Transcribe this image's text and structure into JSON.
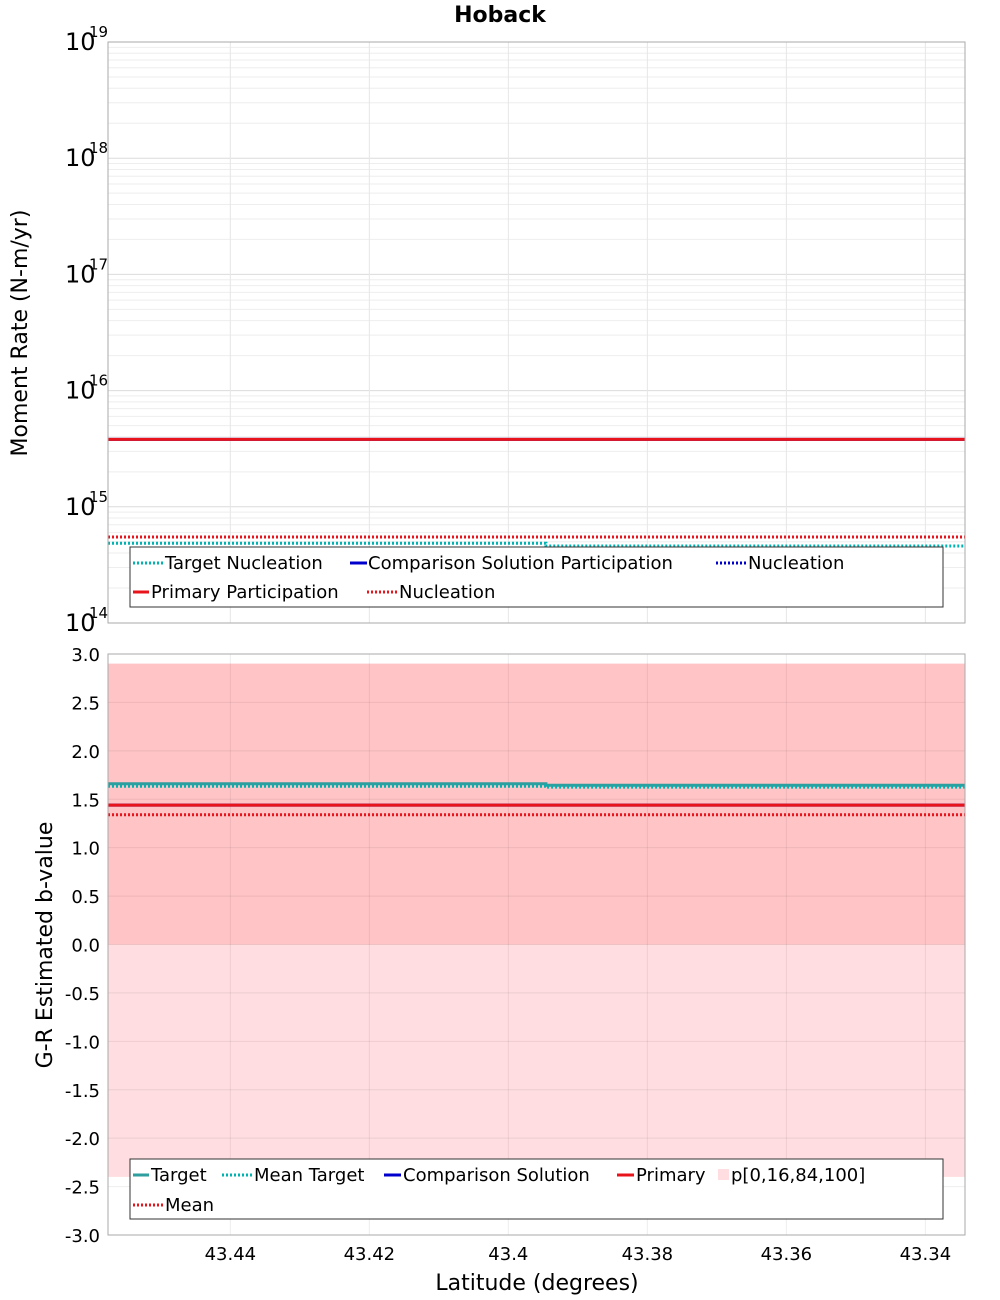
{
  "chart_data": [
    {
      "type": "line",
      "title": "Hoback",
      "xlabel": "",
      "ylabel": "Moment Rate (N-m/yr)",
      "y_scale": "log",
      "ylim": [
        100000000000000.0,
        1e+19
      ],
      "xlim": [
        43.4576,
        43.3343
      ],
      "x_reversed": true,
      "grid": true,
      "y_tick_labels": [
        {
          "base": "10",
          "exp": "14",
          "value": 100000000000000.0
        },
        {
          "base": "10",
          "exp": "15",
          "value": 1000000000000000.0
        },
        {
          "base": "10",
          "exp": "16",
          "value": 1e+16
        },
        {
          "base": "10",
          "exp": "17",
          "value": 1e+17
        },
        {
          "base": "10",
          "exp": "18",
          "value": 1e+18
        },
        {
          "base": "10",
          "exp": "19",
          "value": 1e+19
        }
      ],
      "series": [
        {
          "name": "Target Nucleation",
          "color": "#00b3b3",
          "style": "dotted",
          "x": [
            43.4576,
            43.3946,
            43.3946,
            43.3343
          ],
          "y": [
            485000000000000.0,
            485000000000000.0,
            460000000000000.0,
            460000000000000.0
          ]
        },
        {
          "name": "Comparison Solution Participation",
          "color": "#0000cc",
          "style": "solid",
          "x": [
            43.4576,
            43.3343
          ],
          "y": [
            3800000000000000.0,
            3800000000000000.0
          ]
        },
        {
          "name": "Nucleation",
          "color": "#0000cc",
          "style": "dotted",
          "x": [
            43.4576,
            43.3343
          ],
          "y": [
            550000000000000.0,
            550000000000000.0
          ]
        },
        {
          "name": "Primary Participation",
          "color": "#e8141b",
          "style": "solid",
          "x": [
            43.4576,
            43.3343
          ],
          "y": [
            3800000000000000.0,
            3800000000000000.0
          ]
        },
        {
          "name": "Nucleation",
          "color": "#e8141b",
          "style": "dotted",
          "x": [
            43.4576,
            43.3343
          ],
          "y": [
            550000000000000.0,
            550000000000000.0
          ]
        }
      ],
      "legend_position": "bottom-center"
    },
    {
      "type": "line",
      "title": "",
      "xlabel": "Latitude (degrees)",
      "ylabel": "G-R Estimated b-value",
      "y_scale": "linear",
      "ylim": [
        -3.0,
        3.0
      ],
      "xlim": [
        43.4576,
        43.3343
      ],
      "x_reversed": true,
      "grid": true,
      "x_ticks": [
        43.44,
        43.42,
        43.4,
        43.38,
        43.36,
        43.34
      ],
      "x_tick_labels": [
        "43.44",
        "43.42",
        "43.4",
        "43.38",
        "43.36",
        "43.34"
      ],
      "y_ticks": [
        3.0,
        2.5,
        2.0,
        1.5,
        1.0,
        0.5,
        0.0,
        -0.5,
        -1.0,
        -1.5,
        -2.0,
        -2.5,
        -3.0
      ],
      "y_tick_labels": [
        "3.0",
        "2.5",
        "2.0",
        "1.5",
        "1.0",
        "0.5",
        "0.0",
        "-0.5",
        "-1.0",
        "-1.5",
        "-2.0",
        "-2.5",
        "-3.0"
      ],
      "bands": [
        {
          "name": "p[0,16,84,100]",
          "ranges": [
            {
              "lower": -2.4,
              "upper": 2.9,
              "color": "#ffdde0"
            },
            {
              "lower": 0.0,
              "upper": 2.9,
              "color": "#ffc4c6"
            }
          ]
        }
      ],
      "series": [
        {
          "name": "Target",
          "color": "#2e9e9e",
          "style": "solid",
          "x": [
            43.4576,
            43.3946,
            43.3946,
            43.3343
          ],
          "y": [
            1.66,
            1.66,
            1.645,
            1.645
          ]
        },
        {
          "name": "Mean Target",
          "color": "#00b3b3",
          "style": "dotted",
          "x": [
            43.4576,
            43.3946,
            43.3946,
            43.3343
          ],
          "y": [
            1.635,
            1.635,
            1.625,
            1.625
          ]
        },
        {
          "name": "Comparison Solution",
          "color": "#0000cc",
          "style": "solid",
          "x": [
            43.4576,
            43.3343
          ],
          "y": [
            1.44,
            1.44
          ]
        },
        {
          "name": "Primary",
          "color": "#e8141b",
          "style": "solid",
          "x": [
            43.4576,
            43.3343
          ],
          "y": [
            1.44,
            1.44
          ]
        },
        {
          "name": "Mean",
          "color": "#e8141b",
          "style": "dotted",
          "x": [
            43.4576,
            43.3343
          ],
          "y": [
            1.34,
            1.34
          ]
        }
      ],
      "legend_position": "bottom-center"
    }
  ]
}
